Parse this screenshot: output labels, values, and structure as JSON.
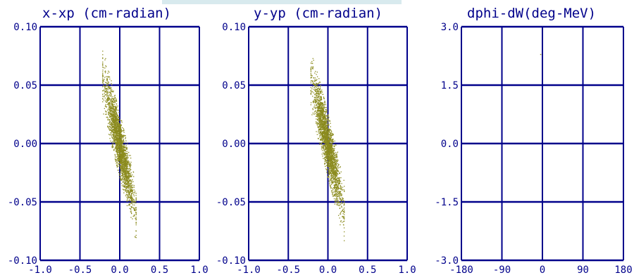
{
  "colors": {
    "grid": "#00008b",
    "text": "#00008b",
    "particles": "#8b8b1e",
    "background": "#ffffff"
  },
  "chart_data": [
    {
      "type": "scatter",
      "title": "x-xp (cm-radian)",
      "xlabel": "",
      "ylabel": "",
      "xlim": [
        -1.0,
        1.0
      ],
      "ylim": [
        -0.1,
        0.1
      ],
      "x_ticks": [
        "-1.0",
        "-0.5",
        "0.0",
        "0.5",
        "1.0"
      ],
      "y_ticks": [
        "0.10",
        "0.05",
        "0.00",
        "-0.05",
        "-0.10"
      ],
      "grid": true,
      "distribution": {
        "shape": "tilted-ellipse",
        "x_extent": [
          -0.22,
          0.2
        ],
        "y_extent": [
          -0.062,
          0.062
        ],
        "correlation": "negative"
      }
    },
    {
      "type": "scatter",
      "title": "y-yp (cm-radian)",
      "xlabel": "",
      "ylabel": "",
      "xlim": [
        -1.0,
        1.0
      ],
      "ylim": [
        -0.1,
        0.1
      ],
      "x_ticks": [
        "-1.0",
        "-0.5",
        "0.0",
        "0.5",
        "1.0"
      ],
      "y_ticks": [
        "0.10",
        "0.05",
        "0.00",
        "-0.05",
        "-0.10"
      ],
      "grid": true,
      "distribution": {
        "shape": "tilted-ellipse",
        "x_extent": [
          -0.22,
          0.2
        ],
        "y_extent": [
          -0.062,
          0.062
        ],
        "correlation": "negative"
      }
    },
    {
      "type": "scatter",
      "title": "dphi-dW(deg-MeV)",
      "xlabel": "",
      "ylabel": "",
      "xlim": [
        -180,
        180
      ],
      "ylim": [
        -3.0,
        3.0
      ],
      "x_ticks": [
        "-180",
        "-90",
        "0",
        "90",
        "180"
      ],
      "y_ticks": [
        "3.0",
        "1.5",
        "0.0",
        "-1.5",
        "-3.0"
      ],
      "grid": true,
      "points": [
        [
          -5,
          2.3
        ]
      ]
    }
  ]
}
